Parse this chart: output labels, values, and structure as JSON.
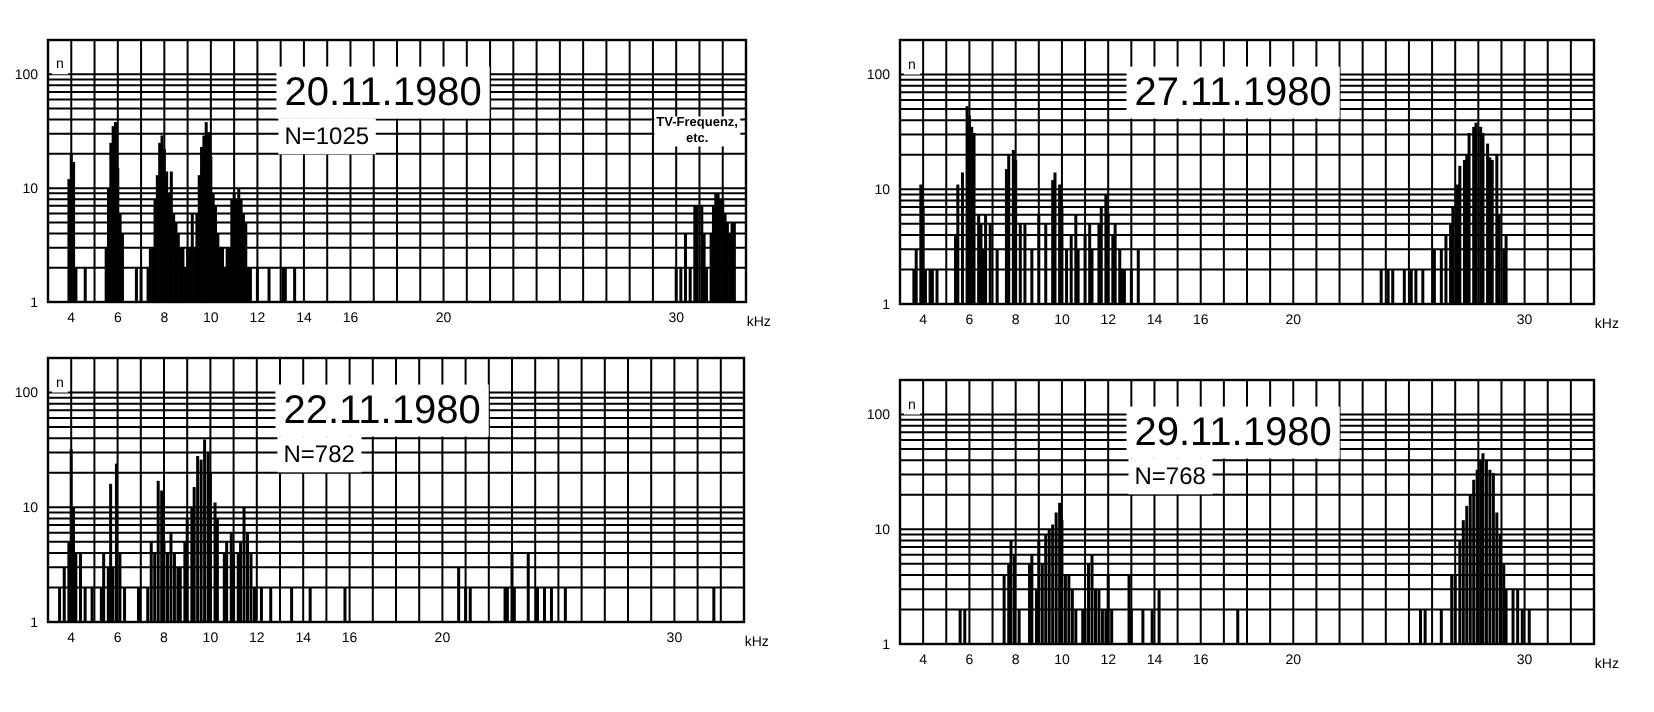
{
  "chart_data": [
    {
      "type": "bar",
      "title": "20.11.1980",
      "xlabel": "kHz",
      "ylabel": "n",
      "log": true,
      "grid": true,
      "color": "#000000",
      "xlim": [
        3,
        33
      ],
      "ylim": [
        1,
        200
      ],
      "xticks": [
        {
          "value": 3,
          "label": null
        },
        4,
        {
          "value": 5,
          "label": null
        },
        6,
        {
          "value": 7,
          "label": null
        },
        8,
        {
          "value": 9,
          "label": null
        },
        10,
        {
          "value": 11,
          "label": null
        },
        12,
        {
          "value": 13,
          "label": null
        },
        14,
        {
          "value": 15,
          "label": null
        },
        16,
        {
          "value": 17,
          "label": null
        },
        {
          "value": 18,
          "label": null
        },
        {
          "value": 19,
          "label": null
        },
        20,
        {
          "value": 21,
          "label": null
        },
        {
          "value": 22,
          "label": null
        },
        {
          "value": 23,
          "label": null
        },
        {
          "value": 24,
          "label": null
        },
        {
          "value": 25,
          "label": null
        },
        {
          "value": 26,
          "label": null
        },
        {
          "value": 27,
          "label": null
        },
        {
          "value": 28,
          "label": null
        },
        {
          "value": 29,
          "label": null
        },
        30,
        {
          "value": 31,
          "label": null
        },
        {
          "value": 32,
          "label": null
        }
      ],
      "yticks": [
        1,
        {
          "value": 2,
          "label": null
        },
        {
          "value": 3,
          "label": null
        },
        {
          "value": 4,
          "label": null
        },
        {
          "value": 5,
          "label": null
        },
        {
          "value": 6,
          "label": null
        },
        {
          "value": 7,
          "label": null
        },
        {
          "value": 8,
          "label": null
        },
        {
          "value": 9,
          "label": null
        },
        10,
        {
          "value": 20,
          "label": null
        },
        {
          "value": 30,
          "label": null
        },
        {
          "value": 40,
          "label": null
        },
        {
          "value": 50,
          "label": null
        },
        {
          "value": 60,
          "label": null
        },
        {
          "value": 70,
          "label": null
        },
        {
          "value": 80,
          "label": null
        },
        {
          "value": 90,
          "label": null
        },
        100
      ],
      "annotations": [
        "N=1025",
        "TV-Frequenz, etc."
      ],
      "x": [
        3.9,
        4.0,
        4.1,
        4.2,
        4.6,
        5.5,
        5.6,
        5.7,
        5.8,
        5.9,
        6.0,
        6.1,
        6.2,
        6.8,
        7.0,
        7.3,
        7.4,
        7.5,
        7.6,
        7.7,
        7.8,
        7.9,
        8.0,
        8.1,
        8.2,
        8.3,
        8.4,
        8.5,
        8.6,
        8.7,
        8.8,
        8.9,
        9.0,
        9.1,
        9.2,
        9.3,
        9.4,
        9.5,
        9.6,
        9.7,
        9.8,
        9.9,
        10.0,
        10.1,
        10.2,
        10.3,
        10.4,
        10.5,
        10.6,
        10.7,
        10.8,
        10.9,
        11.0,
        11.1,
        11.2,
        11.3,
        11.4,
        11.5,
        11.6,
        11.7,
        12.0,
        12.5,
        13.1,
        13.2,
        13.6,
        30.0,
        30.2,
        30.4,
        30.6,
        30.8,
        30.9,
        31.1,
        31.2,
        31.3,
        31.5,
        31.6,
        31.7,
        31.8,
        31.9,
        32.0,
        32.1,
        32.2,
        32.3,
        32.4,
        32.5
      ],
      "values": [
        12,
        20,
        17,
        2,
        2,
        3,
        10,
        25,
        35,
        38,
        15,
        6,
        4,
        2,
        2,
        2,
        3,
        3,
        8,
        13,
        25,
        29,
        22,
        14,
        9,
        14,
        6,
        5,
        4,
        3,
        3,
        2,
        3,
        3,
        6,
        3,
        6,
        13,
        23,
        29,
        38,
        31,
        19,
        9,
        7,
        4,
        3,
        3,
        2,
        3,
        3,
        8,
        9,
        8,
        10,
        8,
        6,
        5,
        2,
        2,
        2,
        2,
        2,
        2,
        2,
        2,
        2,
        4,
        2,
        7,
        7,
        7,
        4,
        2,
        4,
        7,
        9,
        9,
        8,
        8,
        6,
        5,
        4,
        5,
        5
      ]
    },
    {
      "type": "bar",
      "title": "27.11.1980",
      "xlabel": "kHz",
      "ylabel": "n",
      "log": true,
      "grid": true,
      "color": "#000000",
      "xlim": [
        3,
        33
      ],
      "ylim": [
        1,
        200
      ],
      "xticks": [
        {
          "value": 3,
          "label": null
        },
        4,
        {
          "value": 5,
          "label": null
        },
        6,
        {
          "value": 7,
          "label": null
        },
        8,
        {
          "value": 9,
          "label": null
        },
        10,
        {
          "value": 11,
          "label": null
        },
        12,
        {
          "value": 13,
          "label": null
        },
        14,
        {
          "value": 15,
          "label": null
        },
        16,
        {
          "value": 17,
          "label": null
        },
        {
          "value": 18,
          "label": null
        },
        {
          "value": 19,
          "label": null
        },
        20,
        {
          "value": 21,
          "label": null
        },
        {
          "value": 22,
          "label": null
        },
        {
          "value": 23,
          "label": null
        },
        {
          "value": 24,
          "label": null
        },
        {
          "value": 25,
          "label": null
        },
        {
          "value": 26,
          "label": null
        },
        {
          "value": 27,
          "label": null
        },
        {
          "value": 28,
          "label": null
        },
        {
          "value": 29,
          "label": null
        },
        30,
        {
          "value": 31,
          "label": null
        },
        {
          "value": 32,
          "label": null
        }
      ],
      "yticks": [
        1,
        {
          "value": 2,
          "label": null
        },
        {
          "value": 3,
          "label": null
        },
        {
          "value": 4,
          "label": null
        },
        {
          "value": 5,
          "label": null
        },
        {
          "value": 6,
          "label": null
        },
        {
          "value": 7,
          "label": null
        },
        {
          "value": 8,
          "label": null
        },
        {
          "value": 9,
          "label": null
        },
        10,
        {
          "value": 20,
          "label": null
        },
        {
          "value": 30,
          "label": null
        },
        {
          "value": 40,
          "label": null
        },
        {
          "value": 50,
          "label": null
        },
        {
          "value": 60,
          "label": null
        },
        {
          "value": 70,
          "label": null
        },
        {
          "value": 80,
          "label": null
        },
        {
          "value": 90,
          "label": null
        },
        100
      ],
      "x": [
        3.6,
        3.7,
        3.9,
        4.0,
        4.1,
        4.3,
        4.4,
        4.6,
        5.4,
        5.5,
        5.7,
        5.9,
        6.0,
        6.1,
        6.2,
        6.4,
        6.5,
        6.6,
        6.7,
        6.9,
        7.2,
        7.6,
        7.7,
        7.9,
        8.0,
        8.2,
        8.4,
        8.7,
        9.0,
        9.3,
        9.6,
        9.7,
        9.9,
        10.0,
        10.2,
        10.4,
        10.6,
        10.7,
        11.0,
        11.2,
        11.3,
        11.6,
        11.7,
        11.9,
        12.0,
        12.2,
        12.3,
        12.5,
        12.6,
        12.7,
        13.0,
        13.3,
        23.8,
        24.1,
        24.3,
        24.8,
        25.1,
        25.3,
        25.6,
        26.1,
        26.4,
        26.6,
        26.8,
        26.9,
        27.1,
        27.2,
        27.4,
        27.5,
        27.6,
        27.8,
        27.9,
        28.1,
        28.2,
        28.4,
        28.5,
        28.6,
        28.8,
        28.9,
        29.1,
        29.2
      ],
      "values": [
        2,
        3,
        11,
        7,
        2,
        2,
        2,
        2,
        4,
        11,
        14,
        53,
        44,
        35,
        31,
        6,
        5,
        3,
        6,
        5,
        3,
        15,
        20,
        22,
        18,
        5,
        5,
        3,
        6,
        5,
        12,
        14,
        11,
        7,
        3,
        4,
        6,
        3,
        4,
        5,
        3,
        5,
        7,
        9,
        6,
        4,
        5,
        3,
        2,
        2,
        2,
        3,
        2,
        2,
        2,
        2,
        2,
        2,
        2,
        3,
        3,
        4,
        5,
        7,
        11,
        16,
        18,
        20,
        31,
        35,
        38,
        35,
        31,
        25,
        19,
        18,
        20,
        6,
        3,
        4
      ]
    },
    {
      "type": "bar",
      "title": "22.11.1980",
      "xlabel": "kHz",
      "ylabel": "n",
      "log": true,
      "grid": true,
      "color": "#000000",
      "xlim": [
        3,
        33
      ],
      "ylim": [
        1,
        200
      ],
      "xticks": [
        {
          "value": 3,
          "label": null
        },
        4,
        {
          "value": 5,
          "label": null
        },
        6,
        {
          "value": 7,
          "label": null
        },
        8,
        {
          "value": 9,
          "label": null
        },
        10,
        {
          "value": 11,
          "label": null
        },
        12,
        {
          "value": 13,
          "label": null
        },
        14,
        {
          "value": 15,
          "label": null
        },
        16,
        {
          "value": 17,
          "label": null
        },
        {
          "value": 18,
          "label": null
        },
        {
          "value": 19,
          "label": null
        },
        20,
        {
          "value": 21,
          "label": null
        },
        {
          "value": 22,
          "label": null
        },
        {
          "value": 23,
          "label": null
        },
        {
          "value": 24,
          "label": null
        },
        {
          "value": 25,
          "label": null
        },
        {
          "value": 26,
          "label": null
        },
        {
          "value": 27,
          "label": null
        },
        {
          "value": 28,
          "label": null
        },
        {
          "value": 29,
          "label": null
        },
        30,
        {
          "value": 31,
          "label": null
        },
        {
          "value": 32,
          "label": null
        }
      ],
      "yticks": [
        1,
        {
          "value": 2,
          "label": null
        },
        {
          "value": 3,
          "label": null
        },
        {
          "value": 4,
          "label": null
        },
        {
          "value": 5,
          "label": null
        },
        {
          "value": 6,
          "label": null
        },
        {
          "value": 7,
          "label": null
        },
        {
          "value": 8,
          "label": null
        },
        {
          "value": 9,
          "label": null
        },
        10,
        {
          "value": 20,
          "label": null
        },
        {
          "value": 30,
          "label": null
        },
        {
          "value": 40,
          "label": null
        },
        {
          "value": 50,
          "label": null
        },
        {
          "value": 60,
          "label": null
        },
        {
          "value": 70,
          "label": null
        },
        {
          "value": 80,
          "label": null
        },
        {
          "value": 90,
          "label": null
        },
        100
      ],
      "annotations": [
        "N=782"
      ],
      "x": [
        3.5,
        3.7,
        3.9,
        4.0,
        4.1,
        4.2,
        4.4,
        4.6,
        4.9,
        5.3,
        5.4,
        5.6,
        5.7,
        5.8,
        5.95,
        6.1,
        6.3,
        6.9,
        7.3,
        7.45,
        7.6,
        7.75,
        7.9,
        8.0,
        8.15,
        8.3,
        8.45,
        8.6,
        8.7,
        8.9,
        9.0,
        9.2,
        9.3,
        9.45,
        9.6,
        9.75,
        9.9,
        10.0,
        10.2,
        10.3,
        10.6,
        10.7,
        10.9,
        11.0,
        11.2,
        11.3,
        11.45,
        11.6,
        11.75,
        11.9,
        12.2,
        12.6,
        13.5,
        14.3,
        15.8,
        20.7,
        21.0,
        21.2,
        22.7,
        22.8,
        23.0,
        23.1,
        23.7,
        24.1,
        24.4,
        24.7,
        25.3,
        31.7
      ],
      "values": [
        2,
        3,
        5,
        32,
        10,
        4,
        4,
        2,
        2,
        2,
        4,
        3,
        16,
        3,
        24,
        4,
        2,
        2,
        2,
        5,
        4,
        17,
        14,
        5,
        4,
        6,
        4,
        3,
        3,
        5,
        8,
        10,
        15,
        28,
        26,
        39,
        30,
        20,
        11,
        8,
        4,
        5,
        6,
        4,
        4,
        5,
        10,
        6,
        4,
        2,
        2,
        2,
        2,
        2,
        2,
        3,
        2,
        2,
        2,
        2,
        4,
        2,
        4,
        2,
        2,
        2,
        2,
        2
      ]
    },
    {
      "type": "bar",
      "title": "29.11.1980",
      "xlabel": "kHz",
      "ylabel": "n",
      "log": true,
      "grid": true,
      "color": "#000000",
      "xlim": [
        3,
        33
      ],
      "ylim": [
        1,
        200
      ],
      "xticks": [
        {
          "value": 3,
          "label": null
        },
        4,
        {
          "value": 5,
          "label": null
        },
        6,
        {
          "value": 7,
          "label": null
        },
        8,
        {
          "value": 9,
          "label": null
        },
        10,
        {
          "value": 11,
          "label": null
        },
        12,
        {
          "value": 13,
          "label": null
        },
        14,
        {
          "value": 15,
          "label": null
        },
        16,
        {
          "value": 17,
          "label": null
        },
        {
          "value": 18,
          "label": null
        },
        {
          "value": 19,
          "label": null
        },
        20,
        {
          "value": 21,
          "label": null
        },
        {
          "value": 22,
          "label": null
        },
        {
          "value": 23,
          "label": null
        },
        {
          "value": 24,
          "label": null
        },
        {
          "value": 25,
          "label": null
        },
        {
          "value": 26,
          "label": null
        },
        {
          "value": 27,
          "label": null
        },
        {
          "value": 28,
          "label": null
        },
        {
          "value": 29,
          "label": null
        },
        30,
        {
          "value": 31,
          "label": null
        },
        {
          "value": 32,
          "label": null
        }
      ],
      "yticks": [
        1,
        {
          "value": 2,
          "label": null
        },
        {
          "value": 3,
          "label": null
        },
        {
          "value": 4,
          "label": null
        },
        {
          "value": 5,
          "label": null
        },
        {
          "value": 6,
          "label": null
        },
        {
          "value": 7,
          "label": null
        },
        {
          "value": 8,
          "label": null
        },
        {
          "value": 9,
          "label": null
        },
        10,
        {
          "value": 20,
          "label": null
        },
        {
          "value": 30,
          "label": null
        },
        {
          "value": 40,
          "label": null
        },
        {
          "value": 50,
          "label": null
        },
        {
          "value": 60,
          "label": null
        },
        {
          "value": 70,
          "label": null
        },
        {
          "value": 80,
          "label": null
        },
        {
          "value": 90,
          "label": null
        },
        100
      ],
      "annotations": [
        "N=768"
      ],
      "x": [
        5.6,
        5.8,
        7.5,
        7.7,
        7.8,
        7.95,
        8.15,
        8.6,
        8.7,
        8.9,
        9.0,
        9.15,
        9.3,
        9.45,
        9.6,
        9.75,
        9.9,
        10.0,
        10.15,
        10.3,
        10.45,
        10.6,
        10.9,
        11.0,
        11.15,
        11.3,
        11.45,
        11.6,
        11.75,
        11.9,
        12.0,
        12.15,
        12.9,
        13.0,
        13.5,
        13.9,
        14.2,
        17.6,
        25.5,
        25.7,
        26.4,
        26.85,
        27.0,
        27.2,
        27.35,
        27.5,
        27.65,
        27.8,
        27.95,
        28.1,
        28.2,
        28.35,
        28.5,
        28.65,
        28.8,
        28.95,
        29.1,
        29.2,
        29.5,
        29.7,
        29.9,
        30.2
      ],
      "values": [
        2,
        2,
        4,
        5,
        8,
        6,
        2,
        5,
        6,
        3,
        8,
        5,
        9,
        10,
        11,
        14,
        17,
        12,
        4,
        4,
        3,
        2,
        2,
        2,
        5,
        6,
        3,
        3,
        2,
        2,
        4,
        2,
        4,
        2,
        2,
        2,
        3,
        2,
        2,
        2,
        2,
        4,
        4,
        8,
        12,
        16,
        20,
        27,
        33,
        40,
        46,
        40,
        33,
        31,
        14,
        9,
        5,
        3,
        3,
        3,
        2,
        2
      ]
    }
  ]
}
